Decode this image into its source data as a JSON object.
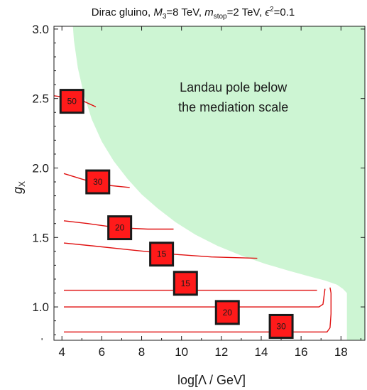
{
  "chart_data": {
    "type": "contour",
    "title": {
      "prefix": "Dirac gluino, ",
      "m3_symbol": "M",
      "m3_sub": "3",
      "m3_value": "=8 TeV, ",
      "mstop_symbol": "m",
      "mstop_sub": "stop",
      "mstop_value": "=2 TeV, ",
      "eps_symbol": "ϵ",
      "eps_sup": "2",
      "eps_value": "=0.1"
    },
    "xlabel": "log[Λ / GeV]",
    "ylabel": {
      "symbol": "g",
      "sub": "X"
    },
    "xlim": [
      3.6,
      19.2
    ],
    "ylim": [
      0.76,
      3.02
    ],
    "xticks": [
      4,
      6,
      8,
      10,
      12,
      14,
      16,
      18
    ],
    "xtick_labels": [
      "4",
      "6",
      "8",
      "10",
      "12",
      "14",
      "16",
      "18"
    ],
    "yticks": [
      1.0,
      1.5,
      2.0,
      2.5,
      3.0
    ],
    "ytick_labels": [
      "1.0",
      "1.5",
      "2.0",
      "2.5",
      "3.0"
    ],
    "excluded_region": {
      "label_line1": "Landau pole below",
      "label_line2": "the mediation scale",
      "color": "#cdf5d3",
      "boundary": [
        [
          4.55,
          3.02
        ],
        [
          4.6,
          2.92
        ],
        [
          4.8,
          2.72
        ],
        [
          5.1,
          2.53
        ],
        [
          5.5,
          2.35
        ],
        [
          6.0,
          2.19
        ],
        [
          6.6,
          2.05
        ],
        [
          7.3,
          1.92
        ],
        [
          8.0,
          1.81
        ],
        [
          8.8,
          1.71
        ],
        [
          9.7,
          1.61
        ],
        [
          10.7,
          1.52
        ],
        [
          11.8,
          1.44
        ],
        [
          13.0,
          1.37
        ],
        [
          14.2,
          1.31
        ],
        [
          15.4,
          1.26
        ],
        [
          16.4,
          1.22
        ],
        [
          17.2,
          1.19
        ],
        [
          17.8,
          1.16
        ],
        [
          18.1,
          1.13
        ],
        [
          18.3,
          1.1
        ],
        [
          18.3,
          0.76
        ]
      ]
    },
    "contours": [
      {
        "label": "50",
        "points": [
          [
            3.6,
            2.52
          ],
          [
            4.6,
            2.5
          ],
          [
            5.1,
            2.48
          ],
          [
            5.7,
            2.44
          ]
        ]
      },
      {
        "label": "30",
        "points": [
          [
            4.1,
            1.96
          ],
          [
            5.0,
            1.92
          ],
          [
            6.0,
            1.88
          ],
          [
            7.4,
            1.86
          ]
        ]
      },
      {
        "label": "20",
        "points": [
          [
            4.1,
            1.62
          ],
          [
            5.3,
            1.6
          ],
          [
            6.8,
            1.57
          ],
          [
            8.3,
            1.56
          ],
          [
            9.6,
            1.56
          ]
        ]
      },
      {
        "label": "15",
        "points": [
          [
            4.1,
            1.46
          ],
          [
            5.5,
            1.44
          ],
          [
            7.5,
            1.41
          ],
          [
            9.5,
            1.38
          ],
          [
            11.5,
            1.36
          ],
          [
            13.8,
            1.35
          ]
        ]
      },
      {
        "label": "15",
        "points": [
          [
            4.1,
            1.12
          ],
          [
            8.0,
            1.12
          ],
          [
            12.0,
            1.12
          ],
          [
            15.0,
            1.12
          ],
          [
            16.8,
            1.12
          ]
        ]
      },
      {
        "label": "20",
        "points": [
          [
            4.1,
            1.0
          ],
          [
            8.0,
            1.0
          ],
          [
            12.0,
            1.0
          ],
          [
            15.0,
            1.0
          ],
          [
            16.9,
            1.0
          ],
          [
            17.1,
            1.02
          ],
          [
            17.2,
            1.13
          ]
        ]
      },
      {
        "label": "30",
        "points": [
          [
            4.1,
            0.82
          ],
          [
            8.0,
            0.82
          ],
          [
            12.0,
            0.82
          ],
          [
            16.0,
            0.82
          ],
          [
            17.3,
            0.82
          ],
          [
            17.45,
            0.85
          ],
          [
            17.5,
            0.95
          ],
          [
            17.5,
            1.1
          ],
          [
            17.45,
            1.14
          ]
        ]
      }
    ],
    "contour_labels": [
      {
        "text": "50",
        "x": 4.5,
        "y": 2.48
      },
      {
        "text": "30",
        "x": 5.8,
        "y": 1.9
      },
      {
        "text": "20",
        "x": 6.9,
        "y": 1.57
      },
      {
        "text": "15",
        "x": 9.0,
        "y": 1.38
      },
      {
        "text": "15",
        "x": 10.2,
        "y": 1.17
      },
      {
        "text": "20",
        "x": 12.3,
        "y": 0.96
      },
      {
        "text": "30",
        "x": 15.0,
        "y": 0.86
      }
    ],
    "colors": {
      "contour": "#e01010",
      "label_fill": "#ff1a1a",
      "label_border": "#1a1a1a",
      "axis": "#1a1a1a"
    }
  }
}
